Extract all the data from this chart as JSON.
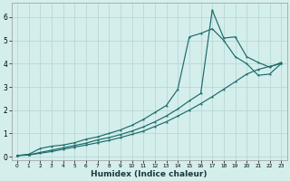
{
  "xlabel": "Humidex (Indice chaleur)",
  "background_color": "#d4eeec",
  "grid_color": "#b8d8d6",
  "line_color": "#1a6b6a",
  "xlim": [
    -0.5,
    23.5
  ],
  "ylim": [
    -0.15,
    6.6
  ],
  "xticks": [
    0,
    1,
    2,
    3,
    4,
    5,
    6,
    7,
    8,
    9,
    10,
    11,
    12,
    13,
    14,
    15,
    16,
    17,
    18,
    19,
    20,
    21,
    22,
    23
  ],
  "yticks": [
    0,
    1,
    2,
    3,
    4,
    5,
    6
  ],
  "line1_x": [
    0,
    1,
    2,
    3,
    4,
    5,
    6,
    7,
    8,
    9,
    10,
    11,
    12,
    13,
    14,
    15,
    16,
    17,
    18,
    19,
    20,
    21,
    22,
    23
  ],
  "line1_y": [
    0.05,
    0.1,
    0.35,
    0.45,
    0.5,
    0.6,
    0.75,
    0.85,
    1.0,
    1.15,
    1.35,
    1.6,
    1.9,
    2.2,
    2.9,
    5.15,
    5.3,
    5.5,
    5.0,
    4.3,
    4.0,
    3.5,
    3.55,
    4.0
  ],
  "line2_x": [
    0,
    1,
    2,
    3,
    4,
    5,
    6,
    7,
    8,
    9,
    10,
    11,
    12,
    13,
    14,
    15,
    16,
    17,
    18,
    19,
    20,
    21,
    22,
    23
  ],
  "line2_y": [
    0.05,
    0.08,
    0.18,
    0.28,
    0.38,
    0.48,
    0.58,
    0.72,
    0.82,
    0.95,
    1.1,
    1.28,
    1.5,
    1.75,
    2.05,
    2.4,
    2.72,
    6.3,
    5.1,
    5.15,
    4.3,
    4.05,
    3.85,
    4.05
  ],
  "line3_x": [
    0,
    1,
    2,
    3,
    4,
    5,
    6,
    7,
    8,
    9,
    10,
    11,
    12,
    13,
    14,
    15,
    16,
    17,
    18,
    19,
    20,
    21,
    22,
    23
  ],
  "line3_y": [
    0.05,
    0.07,
    0.15,
    0.22,
    0.32,
    0.41,
    0.5,
    0.6,
    0.7,
    0.82,
    0.96,
    1.1,
    1.3,
    1.5,
    1.75,
    2.0,
    2.28,
    2.58,
    2.9,
    3.22,
    3.55,
    3.75,
    3.88,
    4.0
  ]
}
